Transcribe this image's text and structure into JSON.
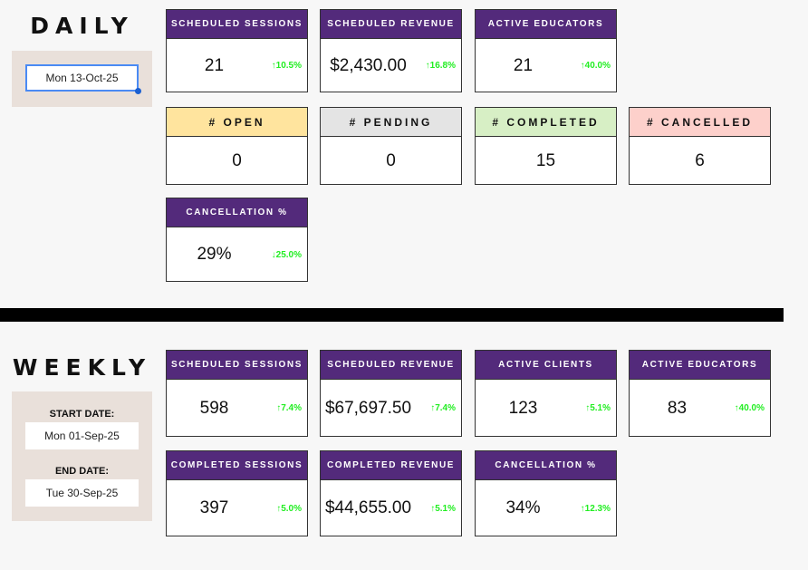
{
  "daily": {
    "title": "DAILY",
    "date_value": "Mon 13-Oct-25",
    "cards": [
      {
        "label": "Scheduled Sessions",
        "value": "21",
        "change": "↑10.5%"
      },
      {
        "label": "Scheduled Revenue",
        "value": "$2,430.00",
        "change": "↑16.8%"
      },
      {
        "label": "Active Educators",
        "value": "21",
        "change": "↑40.0%"
      },
      {
        "label": "# Open",
        "value": "0",
        "header_color": "#ffe49e",
        "text_color": "#111"
      },
      {
        "label": "# Pending",
        "value": "0",
        "header_color": "#e4e4e4",
        "text_color": "#111"
      },
      {
        "label": "# Completed",
        "value": "15",
        "header_color": "#d7efc5",
        "text_color": "#111"
      },
      {
        "label": "# Cancelled",
        "value": "6",
        "header_color": "#fdd0cb",
        "text_color": "#111"
      },
      {
        "label": "Cancellation %",
        "value": "29%",
        "change": "↓25.0%"
      }
    ]
  },
  "weekly": {
    "title": "WEEKLY",
    "start_label": "START DATE:",
    "start_value": "Mon 01-Sep-25",
    "end_label": "END DATE:",
    "end_value": "Tue 30-Sep-25",
    "cards": [
      {
        "label": "Scheduled Sessions",
        "value": "598",
        "change": "↑7.4%"
      },
      {
        "label": "Scheduled Revenue",
        "value": "$67,697.50",
        "change": "↑7.4%"
      },
      {
        "label": "Active Clients",
        "value": "123",
        "change": "↑5.1%"
      },
      {
        "label": "Active Educators",
        "value": "83",
        "change": "↑40.0%"
      },
      {
        "label": "Completed Sessions",
        "value": "397",
        "change": "↑5.0%"
      },
      {
        "label": "Completed Revenue",
        "value": "$44,655.00",
        "change": "↑5.1%"
      },
      {
        "label": "Cancellation %",
        "value": "34%",
        "change": "↑12.3%"
      }
    ]
  },
  "colors": {
    "header": "#532a7b",
    "positive": "#22ee22"
  }
}
